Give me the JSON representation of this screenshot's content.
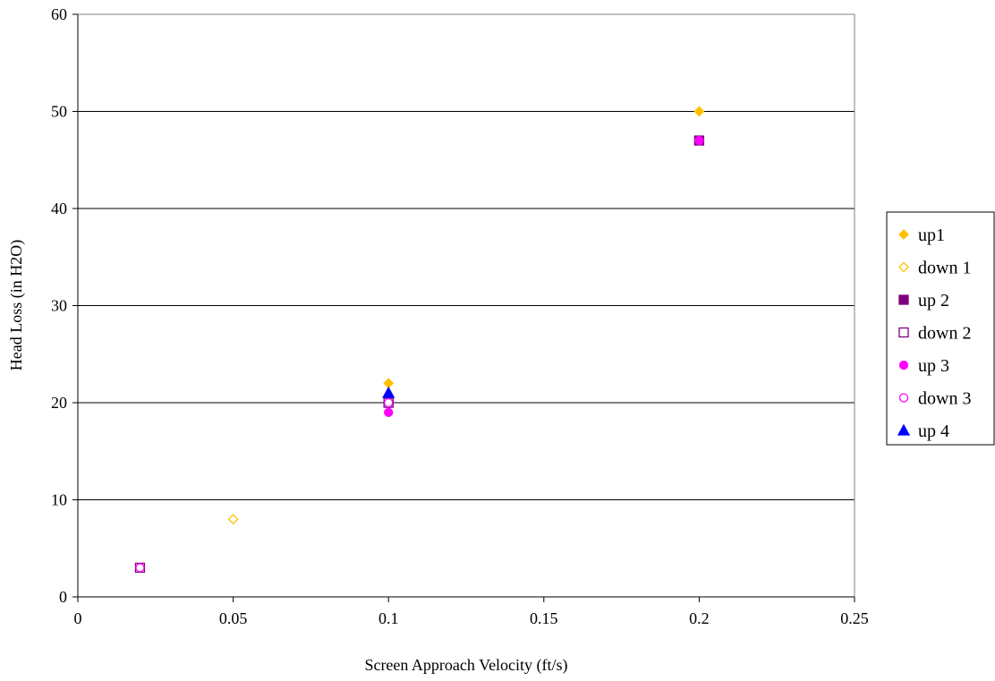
{
  "chart_data": {
    "type": "scatter",
    "title": "",
    "xlabel": "Screen Approach Velocity (ft/s)",
    "ylabel": "Head Loss (in H2O)",
    "xlim": [
      0,
      0.25
    ],
    "ylim": [
      0,
      60
    ],
    "x_ticks": [
      "0",
      "0.05",
      "0.1",
      "0.15",
      "0.2",
      "0.25"
    ],
    "y_ticks": [
      "0",
      "10",
      "20",
      "30",
      "40",
      "50",
      "60"
    ],
    "grid": "horizontal major gridlines",
    "legend_position": "right",
    "series": [
      {
        "name": "up1",
        "color": "#FFC000",
        "marker": "diamond",
        "filled": true,
        "points": [
          {
            "x": 0.1,
            "y": 22
          },
          {
            "x": 0.2,
            "y": 50
          }
        ]
      },
      {
        "name": "down 1",
        "color": "#FFC000",
        "marker": "diamond",
        "filled": false,
        "points": [
          {
            "x": 0.05,
            "y": 8
          }
        ]
      },
      {
        "name": "up 2",
        "color": "#800080",
        "marker": "square",
        "filled": true,
        "points": [
          {
            "x": 0.1,
            "y": 20
          },
          {
            "x": 0.2,
            "y": 47
          }
        ]
      },
      {
        "name": "down 2",
        "color": "#800080",
        "marker": "square",
        "filled": false,
        "points": [
          {
            "x": 0.02,
            "y": 3
          },
          {
            "x": 0.1,
            "y": 20
          }
        ]
      },
      {
        "name": "up 3",
        "color": "#FF00FF",
        "marker": "circle",
        "filled": true,
        "points": [
          {
            "x": 0.1,
            "y": 19
          },
          {
            "x": 0.2,
            "y": 47
          }
        ]
      },
      {
        "name": "down 3",
        "color": "#FF00FF",
        "marker": "circle",
        "filled": false,
        "points": [
          {
            "x": 0.02,
            "y": 3
          },
          {
            "x": 0.1,
            "y": 20
          }
        ]
      },
      {
        "name": "up 4",
        "color": "#0000FF",
        "marker": "triangle",
        "filled": true,
        "points": [
          {
            "x": 0.1,
            "y": 21
          }
        ]
      }
    ]
  }
}
